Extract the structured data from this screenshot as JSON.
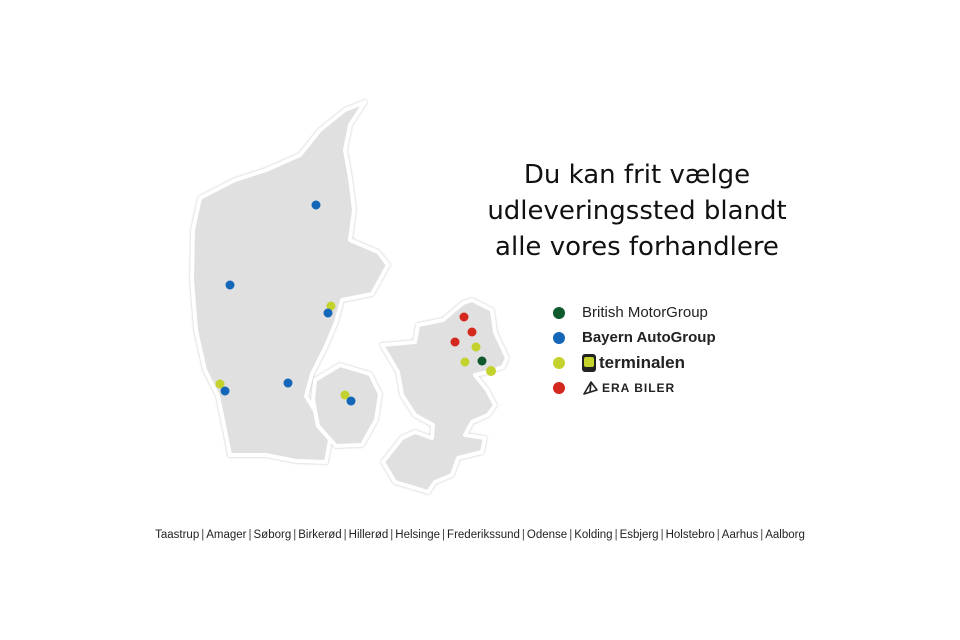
{
  "title_lines": [
    "Du kan frit vælge",
    "udleveringssted blandt",
    "alle vores forhandlere"
  ],
  "legend": [
    {
      "label": "British MotorGroup",
      "color": "#0e5a2c"
    },
    {
      "label": "Bayern AutoGroup",
      "color": "#1466b8"
    },
    {
      "label": "terminalen",
      "color": "#c3d22c",
      "logo": "terminalen-logo"
    },
    {
      "label": "ERA BILER",
      "color": "#d4281e",
      "logo": "era-biler-logo"
    }
  ],
  "map": {
    "regions": [
      "Jylland",
      "Fyn",
      "Sjælland"
    ],
    "land_color": "#e0e0e0"
  },
  "cities": [
    "Taastrup",
    "Amager",
    "Søborg",
    "Birkerød",
    "Hillerød",
    "Helsinge",
    "Frederikssund",
    "Odense",
    "Kolding",
    "Esbjerg",
    "Holstebro",
    "Aarhus",
    "Aalborg"
  ]
}
